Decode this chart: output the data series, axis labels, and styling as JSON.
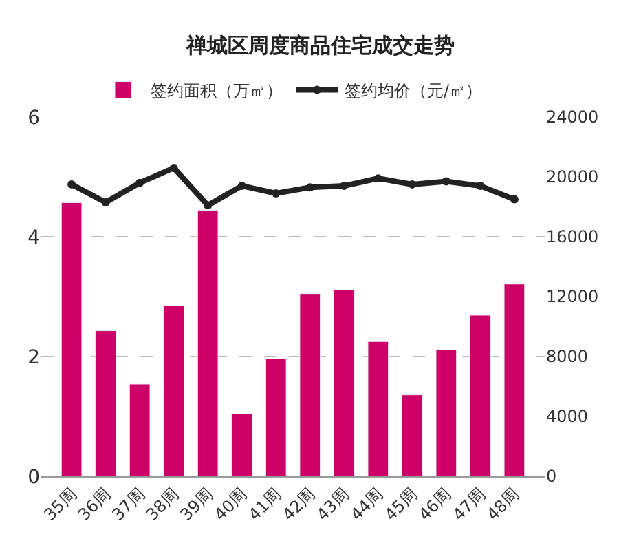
{
  "chart_data": {
    "type": "bar",
    "title": "禅城区周度商品住宅成交走势",
    "categories": [
      "35周",
      "36周",
      "37周",
      "38周",
      "39周",
      "40周",
      "41周",
      "42周",
      "43周",
      "44周",
      "45周",
      "46周",
      "47周",
      "48周"
    ],
    "series": [
      {
        "name": "签约面积（万㎡）",
        "color": "#cc0066",
        "values": [
          4.57,
          2.43,
          1.54,
          2.85,
          4.44,
          1.04,
          1.96,
          3.05,
          3.11,
          2.25,
          1.36,
          2.11,
          2.69,
          3.21
        ]
      },
      {
        "name": "签约均价（元/㎡）",
        "type": "line",
        "axis": "y2",
        "color": "#222222",
        "marker": "circle",
        "values": [
          19500,
          18300,
          19600,
          20600,
          18100,
          19400,
          18900,
          19300,
          19400,
          19900,
          19500,
          19700,
          19400,
          18500
        ]
      }
    ],
    "ylim": [
      0,
      6
    ],
    "yticks": [
      0,
      2,
      4,
      6
    ],
    "y2lim": [
      0,
      24000
    ],
    "y2ticks": [
      0,
      4000,
      8000,
      12000,
      16000,
      20000,
      24000
    ],
    "grid": "y",
    "legend": "top"
  }
}
